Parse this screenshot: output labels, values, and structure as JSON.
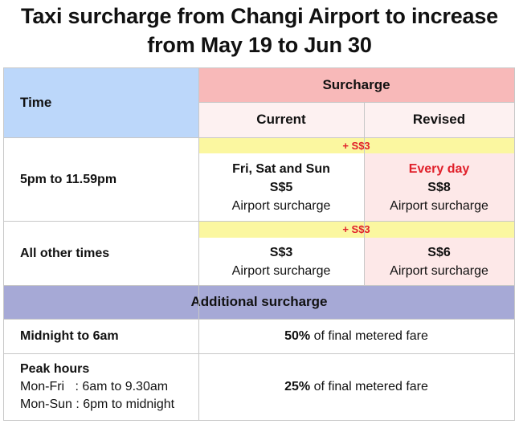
{
  "title": {
    "line1": "Taxi surcharge from Changi Airport to increase",
    "line2": "from May 19 to Jun 30"
  },
  "colors": {
    "time_header_bg": "#bcd7fa",
    "surcharge_header_bg": "#f8b9b9",
    "subheader_bg": "#fdf1f1",
    "revised_bg": "#fde8e8",
    "increase_bg": "#fbf7a0",
    "increase_text": "#e0202a",
    "additional_header_bg": "#a6a9d6",
    "border": "#c8c8c8"
  },
  "table": {
    "time_header": "Time",
    "surcharge_header": "Surcharge",
    "current_header": "Current",
    "revised_header": "Revised",
    "rows": [
      {
        "time": "5pm to 11.59pm",
        "increase": "+ S$3",
        "current_days": "Fri, Sat and Sun",
        "current_amount": "S$5",
        "current_note": "Airport surcharge",
        "revised_days": "Every day",
        "revised_amount": "S$8",
        "revised_note": "Airport surcharge"
      },
      {
        "time": "All other times",
        "increase": "+ S$3",
        "current_amount": "S$3",
        "current_note": "Airport surcharge",
        "revised_amount": "S$6",
        "revised_note": "Airport surcharge"
      }
    ]
  },
  "additional": {
    "header": "Additional surcharge",
    "rows": [
      {
        "time": "Midnight to 6am",
        "percent": "50%",
        "rest": " of final metered fare"
      },
      {
        "time": "Peak hours",
        "line1": "Mon-Fri   : 6am to 9.30am",
        "line2": "Mon-Sun : 6pm to midnight",
        "percent": "25%",
        "rest": " of final metered fare"
      }
    ]
  }
}
